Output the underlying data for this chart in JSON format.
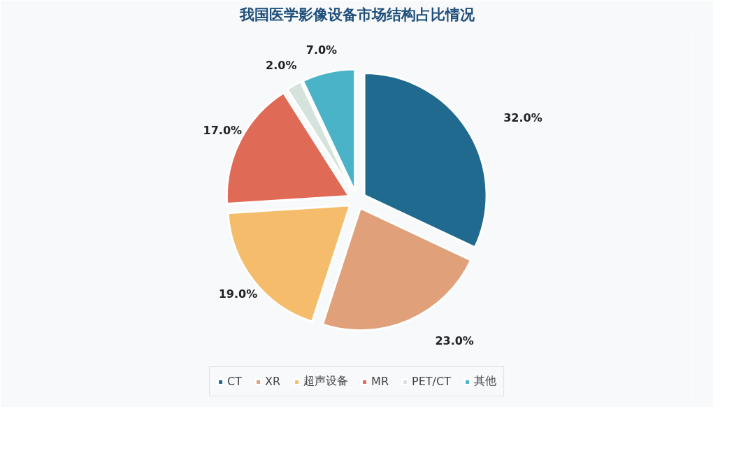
{
  "chart_data": {
    "type": "pie",
    "title": "我国医学影像设备市场结构占比情况",
    "categories": [
      "CT",
      "XR",
      "超声设备",
      "MR",
      "PET/CT",
      "其他"
    ],
    "values": [
      32,
      23,
      19,
      17,
      2,
      7
    ],
    "colors": [
      "#1f6a8e",
      "#e0a07a",
      "#f5bd6b",
      "#df6a55",
      "#d5e3dc",
      "#4bb3c8"
    ],
    "value_labels": [
      "32.0%",
      "23.0%",
      "19.0%",
      "17.0%",
      "2.0%",
      "7.0%"
    ],
    "legend": "bottom"
  }
}
